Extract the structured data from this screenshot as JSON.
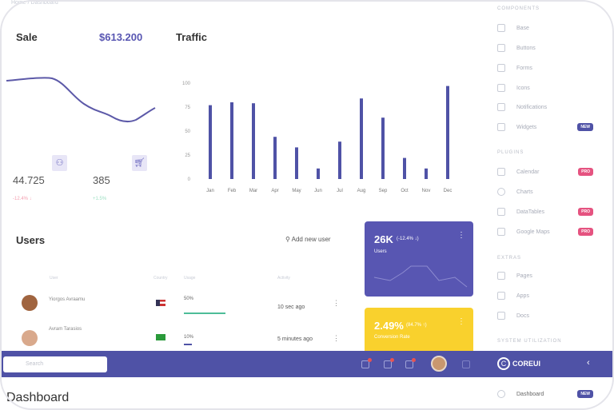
{
  "breadcrumb": [
    "Home",
    "Dashboard"
  ],
  "sale": {
    "title": "Sale",
    "amount": "$613.200",
    "stats": [
      {
        "value": "44.725",
        "change": "-12.4% ↓"
      },
      {
        "value": "385",
        "change": "+1.5%"
      }
    ]
  },
  "traffic": {
    "title": "Traffic"
  },
  "chart_data": {
    "type": "bar",
    "title": "Traffic",
    "categories": [
      "Jan",
      "Feb",
      "Mar",
      "Apr",
      "May",
      "Jun",
      "Jul",
      "Aug",
      "Sep",
      "Oct",
      "Nov",
      "Dec"
    ],
    "values": [
      77,
      80,
      79,
      44,
      33,
      11,
      39,
      84,
      64,
      22,
      11,
      97
    ],
    "yticks": [
      "0",
      "25",
      "50",
      "75",
      "100"
    ],
    "ylim": [
      0,
      100
    ],
    "color": "#4f52a6"
  },
  "users": {
    "title": "Users",
    "add_label": "Add new user",
    "headers": [
      "User",
      "Country",
      "Usage",
      "Activity"
    ],
    "rows": [
      {
        "name": "Yiorgos Avraamu",
        "usage": "50%",
        "usage_value": 50,
        "activity": "10 sec ago"
      },
      {
        "name": "Avram Tarasios",
        "usage": "10%",
        "usage_value": 10,
        "activity": "5 minutes ago"
      }
    ]
  },
  "widgets": [
    {
      "value": "26K",
      "change": "(-12.4% ↓)",
      "label": "Users",
      "color": "#5856b2"
    },
    {
      "value": "2.49%",
      "change": "(84.7% ↑)",
      "label": "Conversion Rate",
      "color": "#f9d12d"
    }
  ],
  "header": {
    "search_placeholder": "Search"
  },
  "page_title": "Dashboard",
  "sidebar": {
    "brand": "COREUI",
    "sections": [
      {
        "title": "COMPONENTS",
        "items": [
          {
            "label": "Base"
          },
          {
            "label": "Buttons"
          },
          {
            "label": "Forms"
          },
          {
            "label": "Icons"
          },
          {
            "label": "Notifications"
          },
          {
            "label": "Widgets",
            "badge": "NEW"
          }
        ]
      },
      {
        "title": "PLUGINS",
        "items": [
          {
            "label": "Calendar",
            "badge": "PRO"
          },
          {
            "label": "Charts"
          },
          {
            "label": "DataTables",
            "badge": "PRO"
          },
          {
            "label": "Google Maps",
            "badge": "PRO"
          }
        ]
      },
      {
        "title": "EXTRAS",
        "items": [
          {
            "label": "Pages"
          },
          {
            "label": "Apps"
          },
          {
            "label": "Docs"
          }
        ]
      },
      {
        "title": "SYSTEM UTILIZATION",
        "items": []
      }
    ],
    "dashboard": {
      "label": "Dashboard",
      "badge": "NEW"
    }
  }
}
